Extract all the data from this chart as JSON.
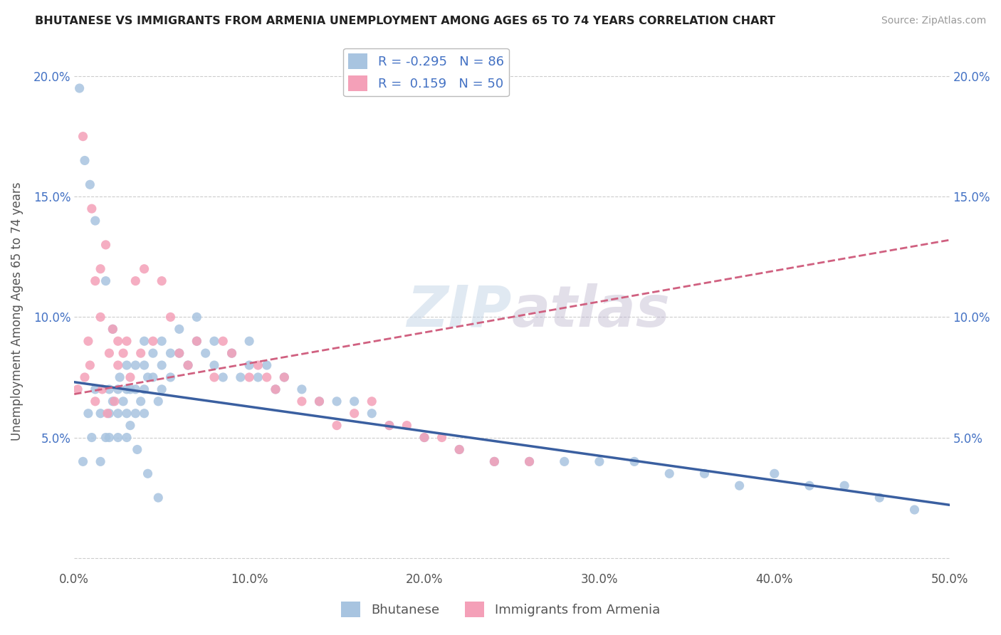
{
  "title": "BHUTANESE VS IMMIGRANTS FROM ARMENIA UNEMPLOYMENT AMONG AGES 65 TO 74 YEARS CORRELATION CHART",
  "source": "Source: ZipAtlas.com",
  "ylabel": "Unemployment Among Ages 65 to 74 years",
  "xlim": [
    0.0,
    0.5
  ],
  "ylim": [
    -0.005,
    0.21
  ],
  "xticks": [
    0.0,
    0.1,
    0.2,
    0.3,
    0.4,
    0.5
  ],
  "xticklabels": [
    "0.0%",
    "10.0%",
    "20.0%",
    "30.0%",
    "40.0%",
    "50.0%"
  ],
  "yticks": [
    0.0,
    0.05,
    0.1,
    0.15,
    0.2
  ],
  "yticklabels": [
    "",
    "5.0%",
    "10.0%",
    "15.0%",
    "20.0%"
  ],
  "legend_labels": [
    "Bhutanese",
    "Immigrants from Armenia"
  ],
  "blue_R": -0.295,
  "blue_N": 86,
  "pink_R": 0.159,
  "pink_N": 50,
  "blue_color": "#a8c4e0",
  "pink_color": "#f4a0b8",
  "blue_line_color": "#3a5fa0",
  "pink_line_color": "#d06080",
  "watermark": "ZIPatlas",
  "blue_scatter_x": [
    0.005,
    0.008,
    0.01,
    0.012,
    0.015,
    0.015,
    0.018,
    0.02,
    0.02,
    0.02,
    0.022,
    0.025,
    0.025,
    0.025,
    0.028,
    0.03,
    0.03,
    0.03,
    0.03,
    0.032,
    0.035,
    0.035,
    0.035,
    0.038,
    0.04,
    0.04,
    0.04,
    0.04,
    0.042,
    0.045,
    0.045,
    0.048,
    0.05,
    0.05,
    0.05,
    0.055,
    0.055,
    0.06,
    0.06,
    0.065,
    0.07,
    0.07,
    0.075,
    0.08,
    0.08,
    0.085,
    0.09,
    0.095,
    0.1,
    0.1,
    0.105,
    0.11,
    0.115,
    0.12,
    0.13,
    0.14,
    0.15,
    0.16,
    0.17,
    0.18,
    0.2,
    0.22,
    0.24,
    0.26,
    0.28,
    0.3,
    0.32,
    0.34,
    0.36,
    0.38,
    0.4,
    0.42,
    0.44,
    0.46,
    0.48,
    0.003,
    0.006,
    0.009,
    0.012,
    0.018,
    0.022,
    0.026,
    0.032,
    0.036,
    0.042,
    0.048
  ],
  "blue_scatter_y": [
    0.04,
    0.06,
    0.05,
    0.07,
    0.04,
    0.06,
    0.05,
    0.07,
    0.06,
    0.05,
    0.065,
    0.07,
    0.06,
    0.05,
    0.065,
    0.08,
    0.07,
    0.06,
    0.05,
    0.07,
    0.08,
    0.07,
    0.06,
    0.065,
    0.09,
    0.08,
    0.07,
    0.06,
    0.075,
    0.085,
    0.075,
    0.065,
    0.09,
    0.08,
    0.07,
    0.085,
    0.075,
    0.095,
    0.085,
    0.08,
    0.1,
    0.09,
    0.085,
    0.09,
    0.08,
    0.075,
    0.085,
    0.075,
    0.09,
    0.08,
    0.075,
    0.08,
    0.07,
    0.075,
    0.07,
    0.065,
    0.065,
    0.065,
    0.06,
    0.055,
    0.05,
    0.045,
    0.04,
    0.04,
    0.04,
    0.04,
    0.04,
    0.035,
    0.035,
    0.03,
    0.035,
    0.03,
    0.03,
    0.025,
    0.02,
    0.195,
    0.165,
    0.155,
    0.14,
    0.115,
    0.095,
    0.075,
    0.055,
    0.045,
    0.035,
    0.025
  ],
  "pink_scatter_x": [
    0.005,
    0.008,
    0.01,
    0.012,
    0.015,
    0.015,
    0.018,
    0.02,
    0.022,
    0.025,
    0.025,
    0.028,
    0.03,
    0.032,
    0.035,
    0.038,
    0.04,
    0.045,
    0.05,
    0.055,
    0.06,
    0.065,
    0.07,
    0.08,
    0.085,
    0.09,
    0.1,
    0.105,
    0.11,
    0.115,
    0.12,
    0.13,
    0.14,
    0.15,
    0.16,
    0.17,
    0.18,
    0.19,
    0.2,
    0.21,
    0.22,
    0.24,
    0.26,
    0.002,
    0.006,
    0.009,
    0.012,
    0.016,
    0.019,
    0.023
  ],
  "pink_scatter_y": [
    0.175,
    0.09,
    0.145,
    0.115,
    0.12,
    0.1,
    0.13,
    0.085,
    0.095,
    0.08,
    0.09,
    0.085,
    0.09,
    0.075,
    0.115,
    0.085,
    0.12,
    0.09,
    0.115,
    0.1,
    0.085,
    0.08,
    0.09,
    0.075,
    0.09,
    0.085,
    0.075,
    0.08,
    0.075,
    0.07,
    0.075,
    0.065,
    0.065,
    0.055,
    0.06,
    0.065,
    0.055,
    0.055,
    0.05,
    0.05,
    0.045,
    0.04,
    0.04,
    0.07,
    0.075,
    0.08,
    0.065,
    0.07,
    0.06,
    0.065
  ],
  "blue_line_x": [
    0.0,
    0.5
  ],
  "blue_line_y": [
    0.073,
    0.022
  ],
  "pink_line_x": [
    0.0,
    0.5
  ],
  "pink_line_y": [
    0.068,
    0.132
  ]
}
